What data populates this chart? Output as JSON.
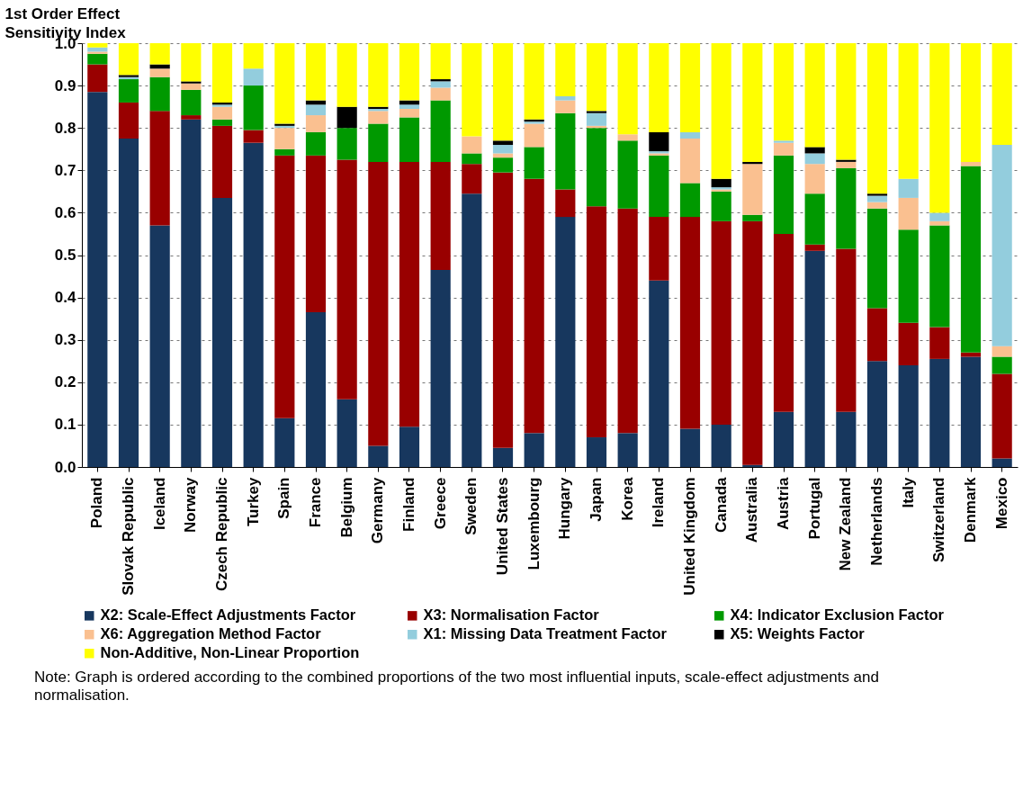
{
  "chart_data": {
    "type": "bar",
    "stacked": true,
    "ylabel": "1st Order Effect Sensitivity Index",
    "categories": [
      "Poland",
      "Slovak Republic",
      "Iceland",
      "Norway",
      "Czech Republic",
      "Turkey",
      "Spain",
      "France",
      "Belgium",
      "Germany",
      "Finland",
      "Greece",
      "Sweden",
      "United States",
      "Luxembourg",
      "Hungary",
      "Japan",
      "Korea",
      "Ireland",
      "United Kingdom",
      "Canada",
      "Australia",
      "Austria",
      "Portugal",
      "New Zealand",
      "Netherlands",
      "Italy",
      "Switzerland",
      "Denmark",
      "Mexico"
    ],
    "ylim": [
      0,
      1
    ],
    "yticks": [
      {
        "value": 0,
        "label": "0.0"
      },
      0.1,
      0.2,
      0.3,
      0.4,
      0.5,
      0.6,
      0.7,
      0.8,
      0.9,
      {
        "value": 1,
        "label": "1.0"
      }
    ],
    "grid": "y",
    "legend": "bottom",
    "series": [
      {
        "name": "X2: Scale-Effect Adjustments Factor",
        "color": "#17375e",
        "values": [
          0.885,
          0.775,
          0.57,
          0.82,
          0.635,
          0.765,
          0.115,
          0.365,
          0.16,
          0.05,
          0.095,
          0.465,
          0.645,
          0.045,
          0.08,
          0.59,
          0.07,
          0.08,
          0.44,
          0.09,
          0.1,
          0.005,
          0.13,
          0.51,
          0.13,
          0.25,
          0.24,
          0.255,
          0.26,
          0.02
        ]
      },
      {
        "name": "X3: Normalisation Factor",
        "color": "#990000",
        "values": [
          0.065,
          0.085,
          0.27,
          0.01,
          0.17,
          0.03,
          0.62,
          0.37,
          0.565,
          0.67,
          0.625,
          0.255,
          0.07,
          0.65,
          0.6,
          0.065,
          0.545,
          0.53,
          0.15,
          0.5,
          0.48,
          0.575,
          0.42,
          0.015,
          0.385,
          0.125,
          0.1,
          0.075,
          0.01,
          0.2
        ]
      },
      {
        "name": "X4: Indicator Exclusion Factor",
        "color": "#009900",
        "values": [
          0.025,
          0.055,
          0.08,
          0.06,
          0.015,
          0.105,
          0.015,
          0.055,
          0.075,
          0.09,
          0.105,
          0.145,
          0.025,
          0.035,
          0.075,
          0.18,
          0.185,
          0.16,
          0.145,
          0.08,
          0.07,
          0.015,
          0.185,
          0.12,
          0.19,
          0.235,
          0.22,
          0.24,
          0.44,
          0.04
        ]
      },
      {
        "name": "X6: Aggregation Method Factor",
        "color": "#fac090",
        "values": [
          0.005,
          0,
          0.02,
          0.015,
          0.03,
          0,
          0.05,
          0.04,
          0,
          0.03,
          0.02,
          0.03,
          0.04,
          0.01,
          0.055,
          0.03,
          0.005,
          0.015,
          0.005,
          0.105,
          0.005,
          0.12,
          0.03,
          0.07,
          0.015,
          0.015,
          0.075,
          0.01,
          0.01,
          0.025
        ]
      },
      {
        "name": "X1: Missing Data Treatment Factor",
        "color": "#93cddd",
        "values": [
          0.01,
          0.005,
          0,
          0,
          0.005,
          0.04,
          0.005,
          0.025,
          0,
          0.005,
          0.01,
          0.015,
          0,
          0.02,
          0.005,
          0.01,
          0.03,
          0,
          0.005,
          0.015,
          0.005,
          0,
          0.005,
          0.025,
          0,
          0.015,
          0.045,
          0.02,
          0,
          0.475
        ]
      },
      {
        "name": "X5: Weights Factor",
        "color": "#000000",
        "values": [
          0,
          0.005,
          0.01,
          0.005,
          0.005,
          0,
          0.005,
          0.01,
          0.05,
          0.005,
          0.01,
          0.005,
          0,
          0.01,
          0.005,
          0,
          0.005,
          0,
          0.045,
          0,
          0.02,
          0.005,
          0,
          0.015,
          0.005,
          0.005,
          0,
          0,
          0,
          0
        ]
      },
      {
        "name": "Non-Additive, Non-Linear Proportion",
        "color": "#ffff00",
        "values": [
          0.01,
          0.075,
          0.05,
          0.09,
          0.14,
          0.06,
          0.19,
          0.135,
          0.15,
          0.15,
          0.135,
          0.085,
          0.22,
          0.23,
          0.18,
          0.125,
          0.16,
          0.215,
          0.21,
          0.21,
          0.32,
          0.28,
          0.23,
          0.245,
          0.275,
          0.355,
          0.32,
          0.4,
          0.28,
          0.24
        ]
      }
    ],
    "annotations": [
      "Note: Graph is ordered according to the combined proportions of the two most influential inputs, scale-effect adjustments and normalisation."
    ]
  }
}
